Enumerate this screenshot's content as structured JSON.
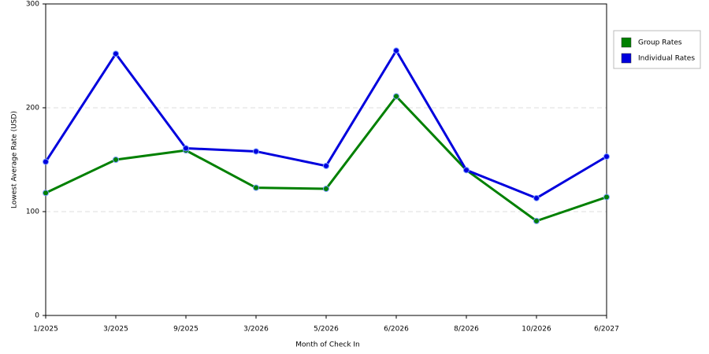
{
  "chart_data": {
    "type": "line",
    "x_label": "Month of Check In",
    "y_label": "Lowest Average Rate (USD)",
    "categories": [
      "1/2025",
      "3/2025",
      "9/2025",
      "3/2026",
      "5/2026",
      "6/2026",
      "8/2026",
      "10/2026",
      "6/2027"
    ],
    "series": [
      {
        "name": "Group Rates",
        "color": "#008000",
        "values": [
          118,
          150,
          159,
          123,
          122,
          211,
          140,
          91,
          114
        ]
      },
      {
        "name": "Individual Rates",
        "color": "#0000dd",
        "values": [
          148,
          252,
          161,
          158,
          144,
          255,
          140,
          113,
          153
        ]
      }
    ],
    "ylim": [
      0,
      300
    ],
    "yticks": [
      0,
      100,
      200,
      300
    ],
    "grid": true,
    "legend": "top-right"
  }
}
